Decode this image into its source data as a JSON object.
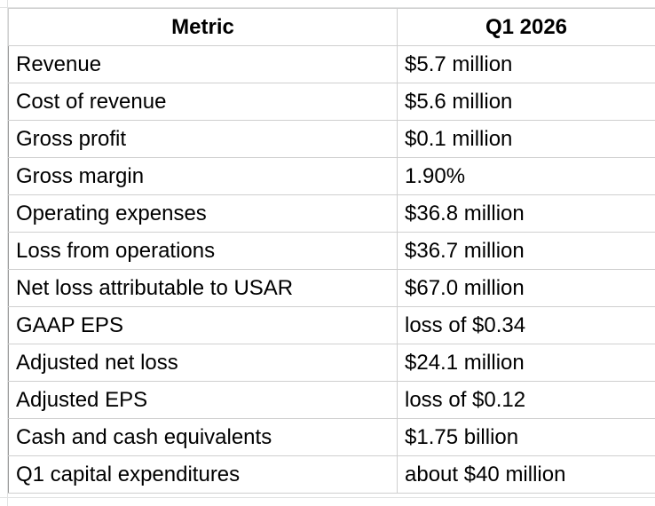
{
  "table": {
    "headers": [
      "Metric",
      "Q1 2026"
    ],
    "rows": [
      [
        "Revenue",
        "$5.7 million"
      ],
      [
        "Cost of revenue",
        "$5.6 million"
      ],
      [
        "Gross profit",
        "$0.1 million"
      ],
      [
        "Gross margin",
        "1.90%"
      ],
      [
        "Operating expenses",
        "$36.8 million"
      ],
      [
        "Loss from operations",
        "$36.7 million"
      ],
      [
        "Net loss attributable to USAR",
        "$67.0 million"
      ],
      [
        "GAAP EPS",
        "loss of $0.34"
      ],
      [
        "Adjusted net loss",
        "$24.1 million"
      ],
      [
        "Adjusted EPS",
        "loss of $0.12"
      ],
      [
        "Cash and cash equivalents",
        "$1.75 billion"
      ],
      [
        "Q1 capital expenditures",
        "about $40 million"
      ]
    ]
  }
}
